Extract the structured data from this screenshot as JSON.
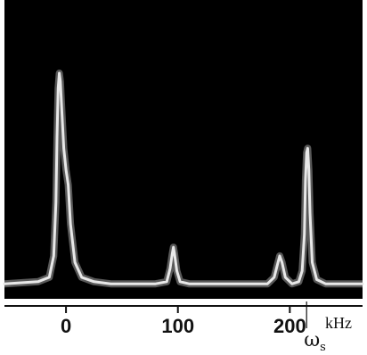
{
  "chart_data": {
    "type": "line",
    "title": "",
    "xlabel": "",
    "ylabel": "",
    "x_unit": "kHz",
    "xlim": [
      -55,
      265
    ],
    "ylim": [
      0,
      1
    ],
    "grid": false,
    "background_color": "#000000",
    "trace_color": "#e8e8e8",
    "x_ticks": [
      {
        "value": 0,
        "label": "0"
      },
      {
        "value": 100,
        "label": "100"
      },
      {
        "value": 200,
        "label": "200"
      }
    ],
    "marker": {
      "value": 215,
      "symbol": "ω",
      "subscript": "s"
    },
    "peaks": [
      {
        "x": -6,
        "y": 1.0
      },
      {
        "x": 96,
        "y": 0.19
      },
      {
        "x": 191,
        "y": 0.15
      },
      {
        "x": 216,
        "y": 0.65
      }
    ],
    "series": [
      {
        "x": [
          -55,
          -40,
          -25,
          -15,
          -11,
          -9,
          -8,
          -7,
          -6,
          -5,
          -4,
          -2,
          0,
          2,
          4,
          8,
          14,
          25,
          40,
          60,
          80,
          90,
          93,
          95,
          96,
          97,
          99,
          102,
          110,
          130,
          160,
          180,
          186,
          189,
          191,
          193,
          196,
          202,
          208,
          211,
          213,
          214,
          215,
          216,
          217,
          218,
          220,
          224,
          232,
          245,
          265
        ],
        "y": [
          0.02,
          0.025,
          0.03,
          0.05,
          0.15,
          0.4,
          0.7,
          0.93,
          1.0,
          0.96,
          0.85,
          0.65,
          0.55,
          0.48,
          0.3,
          0.12,
          0.05,
          0.03,
          0.02,
          0.02,
          0.02,
          0.03,
          0.09,
          0.16,
          0.19,
          0.16,
          0.08,
          0.03,
          0.02,
          0.02,
          0.02,
          0.02,
          0.05,
          0.11,
          0.15,
          0.12,
          0.05,
          0.02,
          0.03,
          0.08,
          0.25,
          0.5,
          0.63,
          0.65,
          0.55,
          0.35,
          0.12,
          0.04,
          0.02,
          0.02,
          0.02
        ]
      }
    ]
  }
}
